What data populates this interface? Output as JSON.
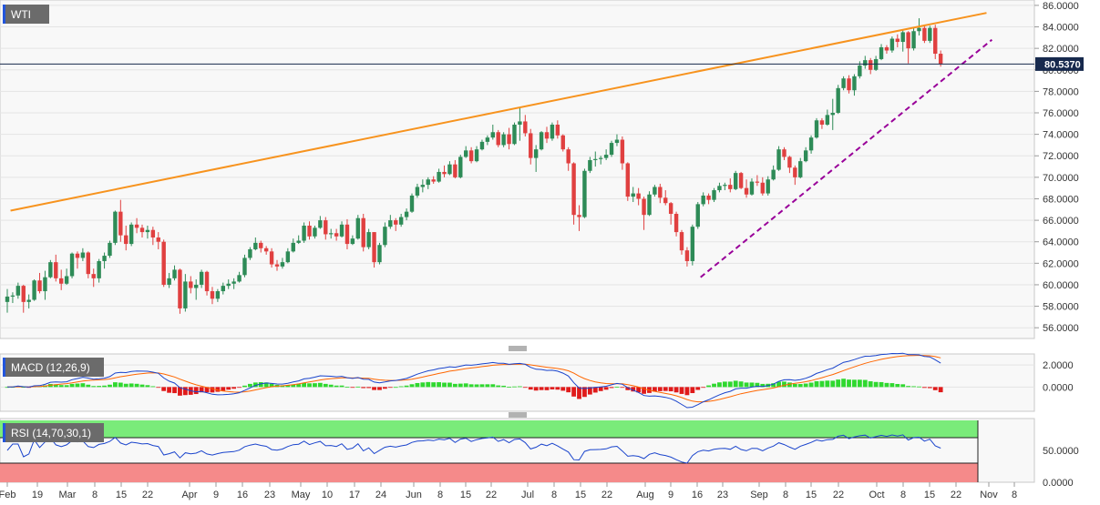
{
  "chart_data": [
    {
      "type": "candlestick",
      "title": "WTI",
      "price_marker": "80.5370",
      "ylim": [
        55.0,
        86.5
      ],
      "y_ticks": [
        "86.0000",
        "84.0000",
        "82.0000",
        "80.0000",
        "78.0000",
        "76.0000",
        "74.0000",
        "72.0000",
        "70.0000",
        "68.0000",
        "66.0000",
        "64.0000",
        "62.0000",
        "60.0000",
        "58.0000",
        "56.0000"
      ],
      "x_ticks": [
        "Feb",
        "19",
        "Mar",
        "8",
        "15",
        "22",
        "Apr",
        "9",
        "16",
        "23",
        "May",
        "10",
        "17",
        "24",
        "Jun",
        "8",
        "15",
        "22",
        "Jul",
        "8",
        "15",
        "22",
        "Aug",
        "9",
        "16",
        "23",
        "Sep",
        "8",
        "15",
        "22",
        "Oct",
        "8",
        "15",
        "22",
        "Nov",
        "8"
      ],
      "candles": [
        [
          58.4,
          59.6,
          57.4,
          58.9
        ],
        [
          58.9,
          59.3,
          58.3,
          59.0
        ],
        [
          59.0,
          60.2,
          58.7,
          59.9
        ],
        [
          59.9,
          60.0,
          57.4,
          58.4
        ],
        [
          58.4,
          59.1,
          57.8,
          58.6
        ],
        [
          58.6,
          60.5,
          58.5,
          60.4
        ],
        [
          60.4,
          61.1,
          59.2,
          59.4
        ],
        [
          59.4,
          61.3,
          58.6,
          60.7
        ],
        [
          60.7,
          62.3,
          60.6,
          62.1
        ],
        [
          62.1,
          62.8,
          60.3,
          60.6
        ],
        [
          60.6,
          61.4,
          59.5,
          60.1
        ],
        [
          60.1,
          61.5,
          60.0,
          60.8
        ],
        [
          60.8,
          63.0,
          60.6,
          62.9
        ],
        [
          62.9,
          63.1,
          61.5,
          62.5
        ],
        [
          62.5,
          63.4,
          62.2,
          63.0
        ],
        [
          63.0,
          63.1,
          60.6,
          61.0
        ],
        [
          61.0,
          61.5,
          59.8,
          60.6
        ],
        [
          60.6,
          62.4,
          60.2,
          62.2
        ],
        [
          62.2,
          63.0,
          61.5,
          62.7
        ],
        [
          62.7,
          64.1,
          62.5,
          63.9
        ],
        [
          63.9,
          66.9,
          63.7,
          66.8
        ],
        [
          66.8,
          67.9,
          64.0,
          64.6
        ],
        [
          64.6,
          65.5,
          63.2,
          63.8
        ],
        [
          63.8,
          65.8,
          63.6,
          65.6
        ],
        [
          65.6,
          66.2,
          64.8,
          65.3
        ],
        [
          65.3,
          65.6,
          64.4,
          64.9
        ],
        [
          64.9,
          65.5,
          64.3,
          65.1
        ],
        [
          65.1,
          65.4,
          63.7,
          64.4
        ],
        [
          64.4,
          64.9,
          63.3,
          64.0
        ],
        [
          64.0,
          64.2,
          59.8,
          60.0
        ],
        [
          60.0,
          61.1,
          59.7,
          60.6
        ],
        [
          60.6,
          61.8,
          60.4,
          61.4
        ],
        [
          61.4,
          61.5,
          57.3,
          57.8
        ],
        [
          57.8,
          61.0,
          57.5,
          60.3
        ],
        [
          60.3,
          60.8,
          59.2,
          59.7
        ],
        [
          59.7,
          60.5,
          58.6,
          60.0
        ],
        [
          60.0,
          61.4,
          59.7,
          61.2
        ],
        [
          61.2,
          61.3,
          59.0,
          59.4
        ],
        [
          59.4,
          59.8,
          58.2,
          58.7
        ],
        [
          58.7,
          59.6,
          58.4,
          59.4
        ],
        [
          59.4,
          60.2,
          59.1,
          59.9
        ],
        [
          59.9,
          60.5,
          59.6,
          60.1
        ],
        [
          60.1,
          60.6,
          59.6,
          60.3
        ],
        [
          60.3,
          61.2,
          60.2,
          60.9
        ],
        [
          60.9,
          62.8,
          60.7,
          62.5
        ],
        [
          62.5,
          63.5,
          62.3,
          63.3
        ],
        [
          63.3,
          64.4,
          63.2,
          63.9
        ],
        [
          63.9,
          64.1,
          63.0,
          63.4
        ],
        [
          63.4,
          63.6,
          62.8,
          63.1
        ],
        [
          63.1,
          63.4,
          61.6,
          61.9
        ],
        [
          61.9,
          62.3,
          61.3,
          61.7
        ],
        [
          61.7,
          62.5,
          61.5,
          62.1
        ],
        [
          62.1,
          63.4,
          62.0,
          63.1
        ],
        [
          63.1,
          64.3,
          63.0,
          63.9
        ],
        [
          63.9,
          64.6,
          63.8,
          64.1
        ],
        [
          64.1,
          65.8,
          63.9,
          65.5
        ],
        [
          65.5,
          65.9,
          64.2,
          64.5
        ],
        [
          64.5,
          65.5,
          64.3,
          65.3
        ],
        [
          65.3,
          66.4,
          65.2,
          66.0
        ],
        [
          66.0,
          66.3,
          64.2,
          64.7
        ],
        [
          64.7,
          65.2,
          64.3,
          64.8
        ],
        [
          64.8,
          65.2,
          64.1,
          64.5
        ],
        [
          64.5,
          65.9,
          64.4,
          65.6
        ],
        [
          65.6,
          66.1,
          63.3,
          63.8
        ],
        [
          63.8,
          64.6,
          63.7,
          64.3
        ],
        [
          64.3,
          66.5,
          64.2,
          66.2
        ],
        [
          66.2,
          66.6,
          63.1,
          63.5
        ],
        [
          63.5,
          65.2,
          63.3,
          64.9
        ],
        [
          64.9,
          64.9,
          61.6,
          62.1
        ],
        [
          62.1,
          63.9,
          61.9,
          63.7
        ],
        [
          63.7,
          65.8,
          63.5,
          65.4
        ],
        [
          65.4,
          66.5,
          65.2,
          66.0
        ],
        [
          66.0,
          66.2,
          65.0,
          65.6
        ],
        [
          65.6,
          66.6,
          65.4,
          66.3
        ],
        [
          66.3,
          67.1,
          66.0,
          66.8
        ],
        [
          66.8,
          68.5,
          66.7,
          68.3
        ],
        [
          68.3,
          69.4,
          68.1,
          69.1
        ],
        [
          69.1,
          69.8,
          68.6,
          69.3
        ],
        [
          69.3,
          70.0,
          68.9,
          69.8
        ],
        [
          69.8,
          70.1,
          69.4,
          69.6
        ],
        [
          69.6,
          70.8,
          69.5,
          70.5
        ],
        [
          70.5,
          71.1,
          70.0,
          70.3
        ],
        [
          70.3,
          71.5,
          70.2,
          71.2
        ],
        [
          71.2,
          71.6,
          69.9,
          70.0
        ],
        [
          70.0,
          72.1,
          69.9,
          71.9
        ],
        [
          71.9,
          72.9,
          71.8,
          72.5
        ],
        [
          72.5,
          72.8,
          71.3,
          71.5
        ],
        [
          71.5,
          72.9,
          71.4,
          72.6
        ],
        [
          72.6,
          73.5,
          72.5,
          73.3
        ],
        [
          73.3,
          73.9,
          73.0,
          73.7
        ],
        [
          73.7,
          74.9,
          73.5,
          74.2
        ],
        [
          74.2,
          74.4,
          72.8,
          73.0
        ],
        [
          73.0,
          74.2,
          72.8,
          74.0
        ],
        [
          74.0,
          74.6,
          72.6,
          73.1
        ],
        [
          73.1,
          75.1,
          73.0,
          74.9
        ],
        [
          74.9,
          76.5,
          73.4,
          75.2
        ],
        [
          75.2,
          75.8,
          73.8,
          74.1
        ],
        [
          74.1,
          74.5,
          71.2,
          71.8
        ],
        [
          71.8,
          73.0,
          70.5,
          72.6
        ],
        [
          72.6,
          74.3,
          72.5,
          74.2
        ],
        [
          74.2,
          74.7,
          73.2,
          73.6
        ],
        [
          73.6,
          75.1,
          73.4,
          74.9
        ],
        [
          74.9,
          75.3,
          73.6,
          73.9
        ],
        [
          73.9,
          74.0,
          72.4,
          72.6
        ],
        [
          72.6,
          72.8,
          70.6,
          71.3
        ],
        [
          71.3,
          71.4,
          65.6,
          66.5
        ],
        [
          66.5,
          67.4,
          65.0,
          66.3
        ],
        [
          66.3,
          70.8,
          66.2,
          70.6
        ],
        [
          70.6,
          71.9,
          70.4,
          71.6
        ],
        [
          71.6,
          72.4,
          71.0,
          71.7
        ],
        [
          71.7,
          72.0,
          71.2,
          71.8
        ],
        [
          71.8,
          72.6,
          71.6,
          72.1
        ],
        [
          72.1,
          73.4,
          71.9,
          73.2
        ],
        [
          73.2,
          74.0,
          72.9,
          73.5
        ],
        [
          73.5,
          73.8,
          70.7,
          71.3
        ],
        [
          71.3,
          71.4,
          67.8,
          68.2
        ],
        [
          68.2,
          69.1,
          67.7,
          68.5
        ],
        [
          68.5,
          69.0,
          67.4,
          68.0
        ],
        [
          68.0,
          68.2,
          65.1,
          66.5
        ],
        [
          66.5,
          68.7,
          66.4,
          68.4
        ],
        [
          68.4,
          69.3,
          68.2,
          69.1
        ],
        [
          69.1,
          69.4,
          67.6,
          68.1
        ],
        [
          68.1,
          68.8,
          67.4,
          67.6
        ],
        [
          67.6,
          67.7,
          65.6,
          66.6
        ],
        [
          66.6,
          66.8,
          64.5,
          64.9
        ],
        [
          64.9,
          65.1,
          62.8,
          63.2
        ],
        [
          63.2,
          63.5,
          61.7,
          62.2
        ],
        [
          62.2,
          65.6,
          61.8,
          65.4
        ],
        [
          65.4,
          67.7,
          65.2,
          67.5
        ],
        [
          67.5,
          68.6,
          67.3,
          68.3
        ],
        [
          68.3,
          68.5,
          67.5,
          67.9
        ],
        [
          67.9,
          69.0,
          67.7,
          68.8
        ],
        [
          68.8,
          69.5,
          68.6,
          69.2
        ],
        [
          69.2,
          69.5,
          68.8,
          69.3
        ],
        [
          69.3,
          69.9,
          68.6,
          68.9
        ],
        [
          68.9,
          70.6,
          68.8,
          70.4
        ],
        [
          70.4,
          70.5,
          68.9,
          69.0
        ],
        [
          69.0,
          69.8,
          68.1,
          68.4
        ],
        [
          68.4,
          69.9,
          68.3,
          69.6
        ],
        [
          69.6,
          70.2,
          69.2,
          69.5
        ],
        [
          69.5,
          70.0,
          68.3,
          68.5
        ],
        [
          68.5,
          70.1,
          68.3,
          69.8
        ],
        [
          69.8,
          71.1,
          69.7,
          70.7
        ],
        [
          70.7,
          72.9,
          70.6,
          72.6
        ],
        [
          72.6,
          72.8,
          71.6,
          71.9
        ],
        [
          71.9,
          72.0,
          70.4,
          70.9
        ],
        [
          70.9,
          71.1,
          69.3,
          70.0
        ],
        [
          70.0,
          71.8,
          69.9,
          71.5
        ],
        [
          71.5,
          72.8,
          71.4,
          72.5
        ],
        [
          72.5,
          73.9,
          72.2,
          73.7
        ],
        [
          73.7,
          75.5,
          73.6,
          75.3
        ],
        [
          75.3,
          75.5,
          74.5,
          74.9
        ],
        [
          74.9,
          76.3,
          74.8,
          75.8
        ],
        [
          75.8,
          77.3,
          74.4,
          76.0
        ],
        [
          76.0,
          78.6,
          75.9,
          78.3
        ],
        [
          78.3,
          79.4,
          78.1,
          79.2
        ],
        [
          79.2,
          79.5,
          77.8,
          78.1
        ],
        [
          78.1,
          79.6,
          77.6,
          79.4
        ],
        [
          79.4,
          80.8,
          79.2,
          80.4
        ],
        [
          80.4,
          81.3,
          80.1,
          80.9
        ],
        [
          80.9,
          81.1,
          79.6,
          80.0
        ],
        [
          80.0,
          81.3,
          79.9,
          81.0
        ],
        [
          81.0,
          82.4,
          80.9,
          82.1
        ],
        [
          82.1,
          82.3,
          81.5,
          81.8
        ],
        [
          81.8,
          83.1,
          81.6,
          82.9
        ],
        [
          82.9,
          83.3,
          82.1,
          82.6
        ],
        [
          82.6,
          83.7,
          81.7,
          83.5
        ],
        [
          83.5,
          83.6,
          80.6,
          82.0
        ],
        [
          82.0,
          83.9,
          81.8,
          83.6
        ],
        [
          83.6,
          84.8,
          83.2,
          83.9
        ],
        [
          83.9,
          84.2,
          82.5,
          82.7
        ],
        [
          82.7,
          84.1,
          82.5,
          83.9
        ],
        [
          83.9,
          84.2,
          81.0,
          81.5
        ],
        [
          81.5,
          81.8,
          80.3,
          80.54
        ]
      ],
      "trendlines": [
        {
          "name": "resistance",
          "style": "solid",
          "color": "#f7931e",
          "from": [
            0.6,
            66.9
          ],
          "to": [
            181.5,
            85.3
          ]
        },
        {
          "name": "support",
          "style": "dashed",
          "color": "#990099",
          "from": [
            128.5,
            60.7
          ],
          "to": [
            182.5,
            82.8
          ]
        }
      ],
      "colors": {
        "up": "#2e8b57",
        "down": "#e04040",
        "marker": "#17294d",
        "grid": "#e4e4e4"
      }
    },
    {
      "type": "line",
      "title": "MACD (12,26,9)",
      "ylim": [
        -2.2,
        3.0
      ],
      "y_ticks": [
        "2.0000",
        "0.0000"
      ],
      "colors": {
        "macd": "#1a44cc",
        "signal": "#ff6600",
        "hist_pos": "#2fd82f",
        "hist_neg": "#e01a1a"
      }
    },
    {
      "type": "line",
      "title": "RSI (14,70,30,1)",
      "ylim": [
        0,
        100
      ],
      "upper_band": 70,
      "lower_band": 30,
      "y_ticks": [
        "50.0000",
        "0.0000"
      ],
      "colors": {
        "line": "#1a44cc",
        "upper_fill": "#7aeb7a",
        "lower_fill": "#f58a8a"
      }
    }
  ]
}
